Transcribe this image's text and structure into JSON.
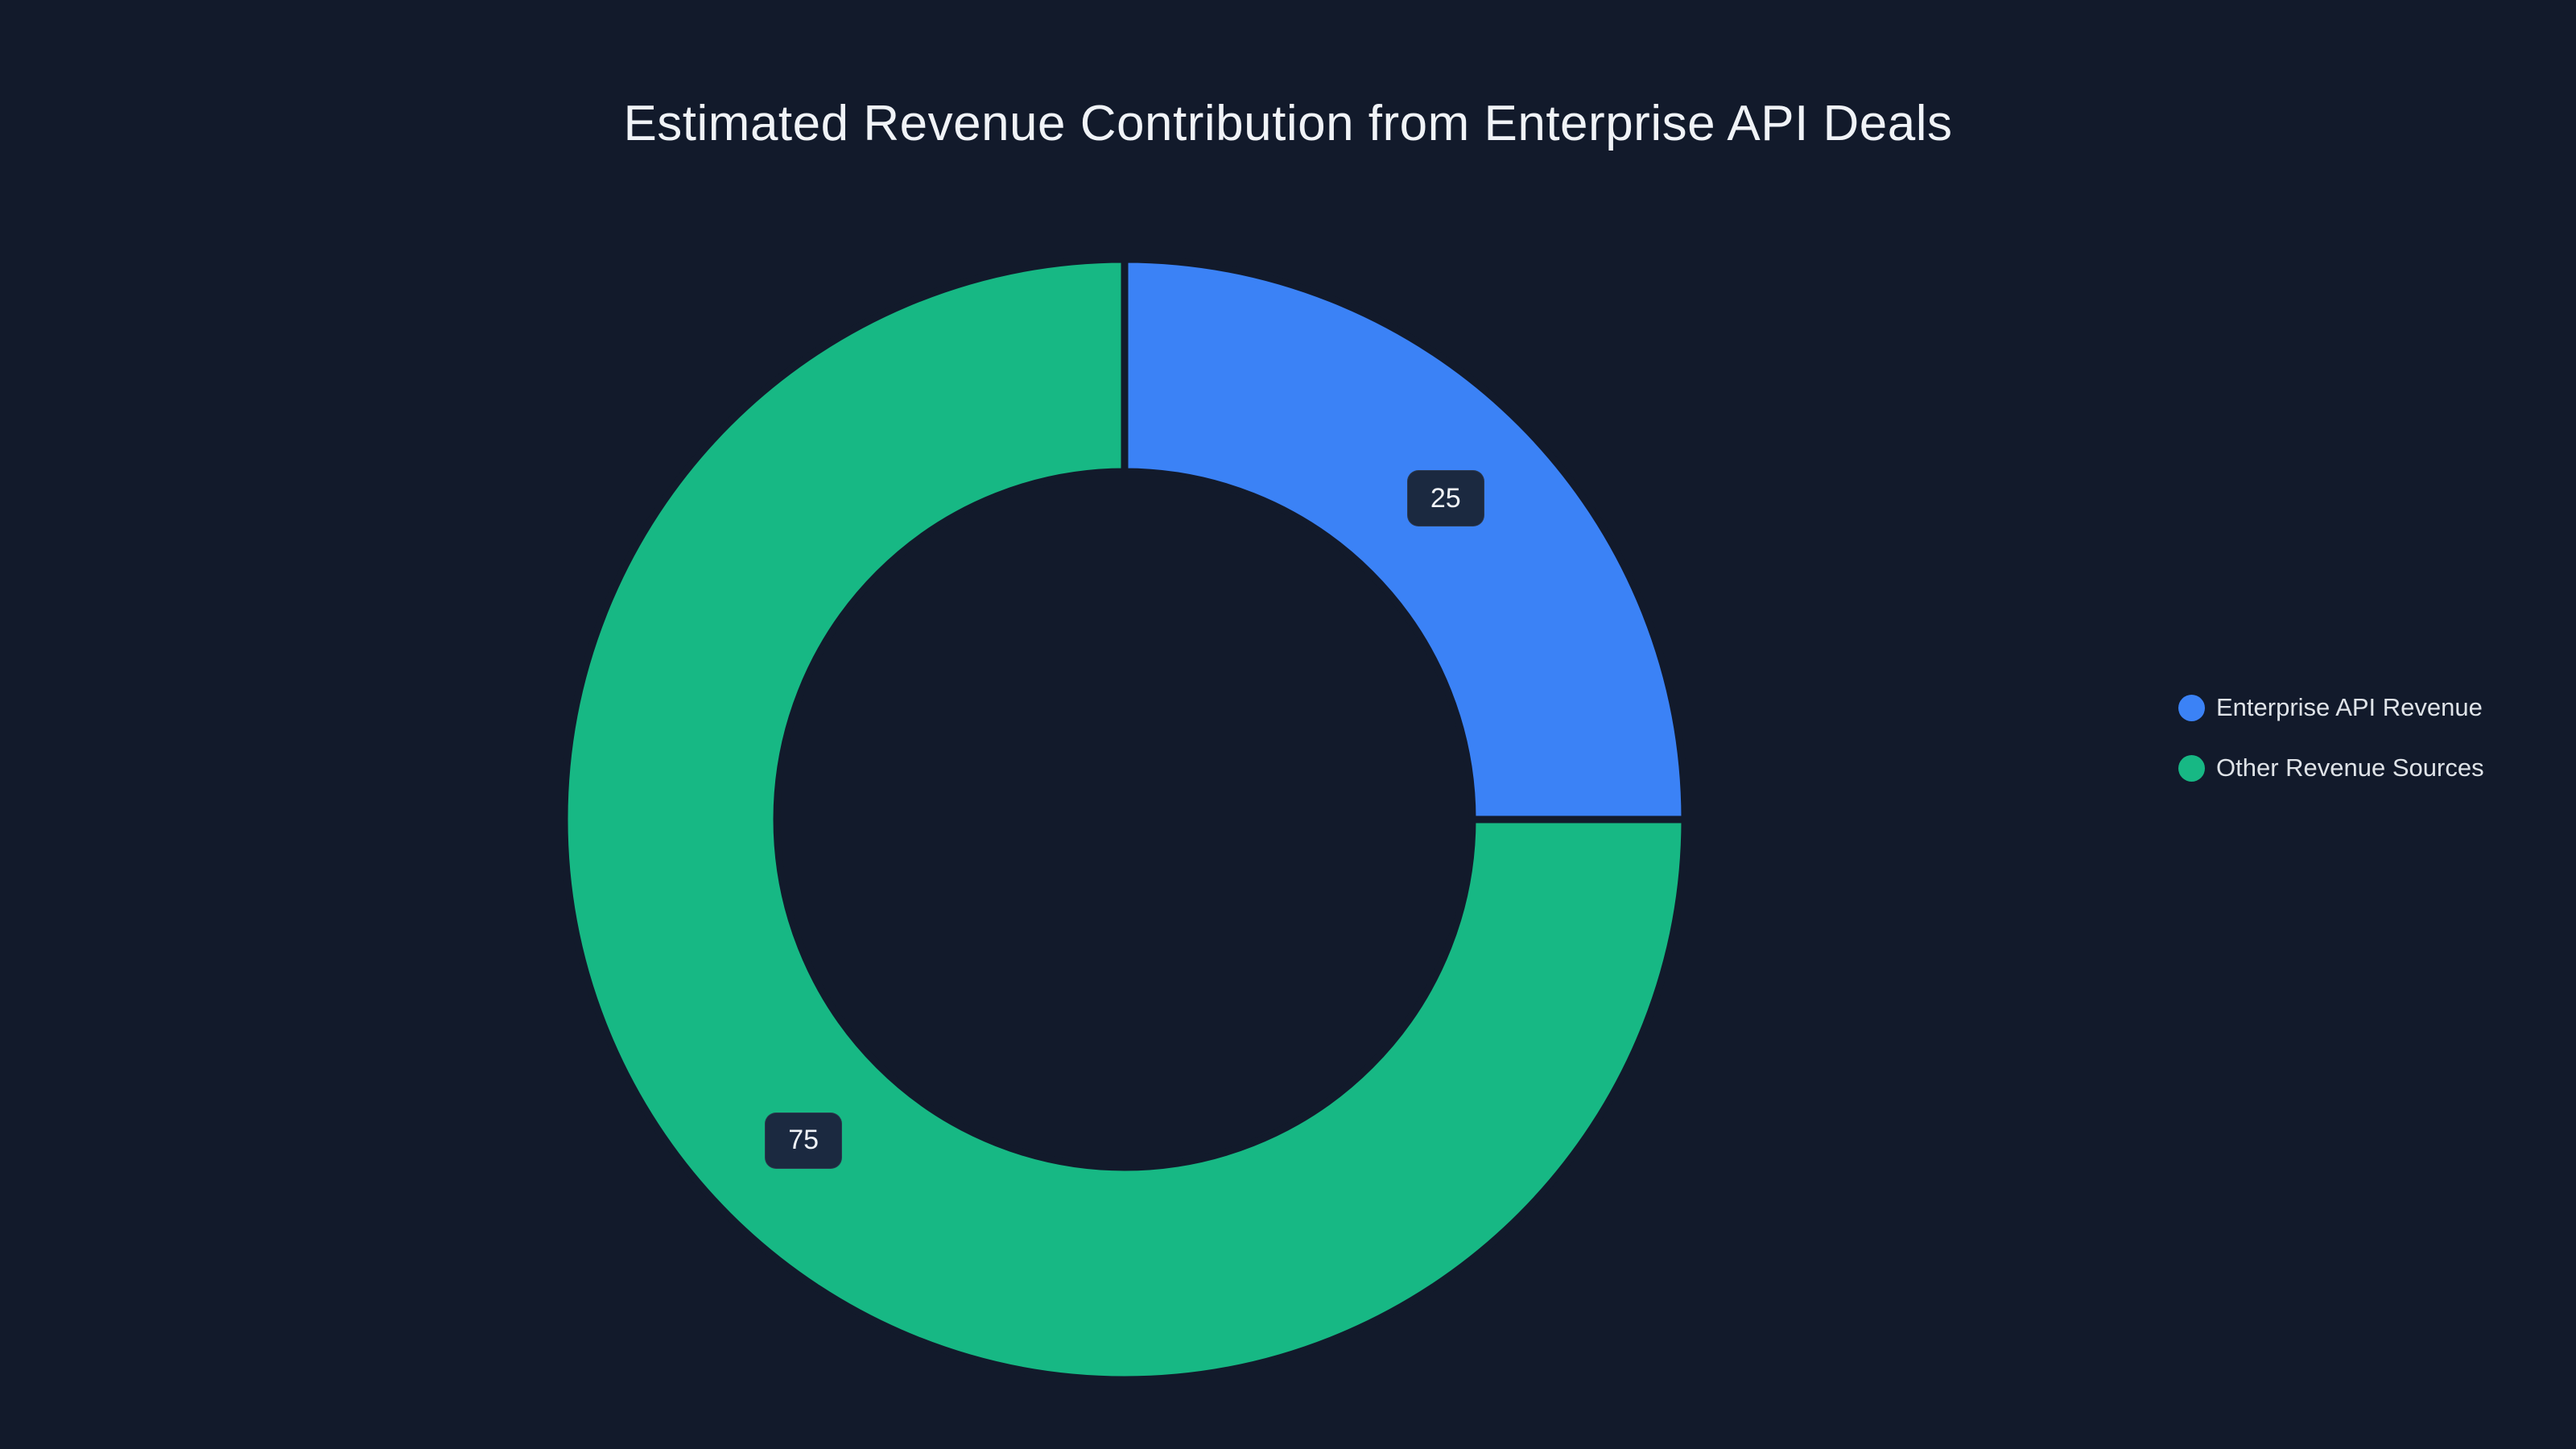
{
  "page": {
    "background": "#121a2b"
  },
  "chart_data": {
    "type": "pie",
    "subtype": "donut",
    "title": "Estimated Revenue Contribution from Enterprise API Deals",
    "labels": [
      "Enterprise API Revenue",
      "Other Revenue Sources"
    ],
    "values": [
      25,
      75
    ],
    "slice_labels": [
      "25",
      "75"
    ],
    "colors": [
      "#3b82f6",
      "#17b884"
    ],
    "hole_ratio": 0.62,
    "start_angle_deg": -90,
    "direction": "clockwise",
    "legend_position": "right",
    "grid": false
  },
  "legend": {
    "items": [
      {
        "label": "Enterprise API Revenue",
        "color": "#3b82f6"
      },
      {
        "label": "Other Revenue Sources",
        "color": "#17b884"
      }
    ]
  }
}
